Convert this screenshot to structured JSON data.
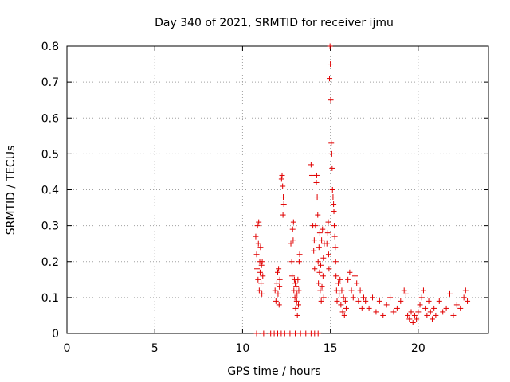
{
  "chart_data": {
    "type": "scatter",
    "title": "Day 340 of 2021, SRMTID for receiver ijmu",
    "xlabel": "GPS time / hours",
    "ylabel": "SRMTID / TECUs",
    "xlim": [
      0,
      24
    ],
    "ylim": [
      0,
      0.8
    ],
    "xticks": [
      0,
      5,
      10,
      15,
      20
    ],
    "yticks": [
      0,
      0.1,
      0.2,
      0.3,
      0.4,
      0.5,
      0.6,
      0.7,
      0.8
    ],
    "xtick_labels": [
      "0",
      "5",
      "10",
      "15",
      "20"
    ],
    "ytick_labels": [
      "0",
      "0.1",
      "0.2",
      "0.3",
      "0.4",
      "0.5",
      "0.6",
      "0.7",
      "0.8"
    ],
    "grid": true,
    "marker": "plus",
    "color": "#e00000",
    "series": [
      {
        "name": "SRMTID",
        "points": [
          [
            10.75,
            0.27
          ],
          [
            10.8,
            0.22
          ],
          [
            10.82,
            0.18
          ],
          [
            10.85,
            0.3
          ],
          [
            10.88,
            0.15
          ],
          [
            10.9,
            0.25
          ],
          [
            10.92,
            0.31
          ],
          [
            10.95,
            0.12
          ],
          [
            10.98,
            0.2
          ],
          [
            11.0,
            0.17
          ],
          [
            11.02,
            0.24
          ],
          [
            11.05,
            0.14
          ],
          [
            11.08,
            0.19
          ],
          [
            11.1,
            0.11
          ],
          [
            11.12,
            0.2
          ],
          [
            11.15,
            0.16
          ],
          [
            11.85,
            0.12
          ],
          [
            11.9,
            0.09
          ],
          [
            11.95,
            0.14
          ],
          [
            12.0,
            0.17
          ],
          [
            12.02,
            0.11
          ],
          [
            12.05,
            0.18
          ],
          [
            12.08,
            0.08
          ],
          [
            12.1,
            0.13
          ],
          [
            12.12,
            0.15
          ],
          [
            12.22,
            0.43
          ],
          [
            12.25,
            0.44
          ],
          [
            12.28,
            0.41
          ],
          [
            12.3,
            0.33
          ],
          [
            12.32,
            0.38
          ],
          [
            12.35,
            0.36
          ],
          [
            12.75,
            0.25
          ],
          [
            12.8,
            0.2
          ],
          [
            12.82,
            0.16
          ],
          [
            12.85,
            0.29
          ],
          [
            12.88,
            0.26
          ],
          [
            12.9,
            0.31
          ],
          [
            12.92,
            0.12
          ],
          [
            12.95,
            0.15
          ],
          [
            12.98,
            0.1
          ],
          [
            13.0,
            0.14
          ],
          [
            13.02,
            0.07
          ],
          [
            13.05,
            0.13
          ],
          [
            13.08,
            0.09
          ],
          [
            13.1,
            0.11
          ],
          [
            13.12,
            0.05
          ],
          [
            13.15,
            0.15
          ],
          [
            13.18,
            0.08
          ],
          [
            13.2,
            0.12
          ],
          [
            13.22,
            0.2
          ],
          [
            13.25,
            0.22
          ],
          [
            13.9,
            0.47
          ],
          [
            13.95,
            0.44
          ],
          [
            14.0,
            0.3
          ],
          [
            14.05,
            0.23
          ],
          [
            14.08,
            0.26
          ],
          [
            14.1,
            0.18
          ],
          [
            14.15,
            0.3
          ],
          [
            14.2,
            0.42
          ],
          [
            14.22,
            0.44
          ],
          [
            14.25,
            0.38
          ],
          [
            14.28,
            0.33
          ],
          [
            14.3,
            0.2
          ],
          [
            14.32,
            0.14
          ],
          [
            14.35,
            0.24
          ],
          [
            14.38,
            0.17
          ],
          [
            14.4,
            0.28
          ],
          [
            14.42,
            0.12
          ],
          [
            14.45,
            0.19
          ],
          [
            14.48,
            0.09
          ],
          [
            14.5,
            0.26
          ],
          [
            14.52,
            0.13
          ],
          [
            14.55,
            0.29
          ],
          [
            14.58,
            0.16
          ],
          [
            14.6,
            0.21
          ],
          [
            14.62,
            0.1
          ],
          [
            14.65,
            0.25
          ],
          [
            14.8,
            0.25
          ],
          [
            14.85,
            0.28
          ],
          [
            14.88,
            0.31
          ],
          [
            14.9,
            0.22
          ],
          [
            14.92,
            0.18
          ],
          [
            14.95,
            0.71
          ],
          [
            14.98,
            0.8
          ],
          [
            15.0,
            0.75
          ],
          [
            15.02,
            0.65
          ],
          [
            15.05,
            0.53
          ],
          [
            15.08,
            0.5
          ],
          [
            15.1,
            0.46
          ],
          [
            15.12,
            0.4
          ],
          [
            15.15,
            0.38
          ],
          [
            15.18,
            0.36
          ],
          [
            15.2,
            0.34
          ],
          [
            15.22,
            0.3
          ],
          [
            15.25,
            0.27
          ],
          [
            15.28,
            0.24
          ],
          [
            15.3,
            0.2
          ],
          [
            15.32,
            0.16
          ],
          [
            15.35,
            0.12
          ],
          [
            15.38,
            0.09
          ],
          [
            15.45,
            0.14
          ],
          [
            15.5,
            0.11
          ],
          [
            15.55,
            0.15
          ],
          [
            15.6,
            0.08
          ],
          [
            15.65,
            0.12
          ],
          [
            15.7,
            0.06
          ],
          [
            15.75,
            0.1
          ],
          [
            15.8,
            0.05
          ],
          [
            15.85,
            0.09
          ],
          [
            15.9,
            0.07
          ],
          [
            16.0,
            0.15
          ],
          [
            16.1,
            0.17
          ],
          [
            16.2,
            0.12
          ],
          [
            16.3,
            0.1
          ],
          [
            16.4,
            0.16
          ],
          [
            16.5,
            0.14
          ],
          [
            16.6,
            0.09
          ],
          [
            16.7,
            0.12
          ],
          [
            16.8,
            0.07
          ],
          [
            16.9,
            0.1
          ],
          [
            17.0,
            0.09
          ],
          [
            17.2,
            0.07
          ],
          [
            17.4,
            0.1
          ],
          [
            17.6,
            0.06
          ],
          [
            17.8,
            0.09
          ],
          [
            18.0,
            0.05
          ],
          [
            18.2,
            0.08
          ],
          [
            18.4,
            0.1
          ],
          [
            18.6,
            0.06
          ],
          [
            18.8,
            0.07
          ],
          [
            19.0,
            0.09
          ],
          [
            19.2,
            0.12
          ],
          [
            19.3,
            0.11
          ],
          [
            19.4,
            0.05
          ],
          [
            19.5,
            0.04
          ],
          [
            19.6,
            0.06
          ],
          [
            19.7,
            0.03
          ],
          [
            19.8,
            0.05
          ],
          [
            19.9,
            0.04
          ],
          [
            20.0,
            0.06
          ],
          [
            20.1,
            0.08
          ],
          [
            20.2,
            0.1
          ],
          [
            20.3,
            0.12
          ],
          [
            20.4,
            0.07
          ],
          [
            20.5,
            0.05
          ],
          [
            20.6,
            0.09
          ],
          [
            20.7,
            0.06
          ],
          [
            20.8,
            0.04
          ],
          [
            20.9,
            0.07
          ],
          [
            21.0,
            0.05
          ],
          [
            21.2,
            0.09
          ],
          [
            21.4,
            0.06
          ],
          [
            21.6,
            0.07
          ],
          [
            21.8,
            0.11
          ],
          [
            22.0,
            0.05
          ],
          [
            22.2,
            0.08
          ],
          [
            22.4,
            0.07
          ],
          [
            22.6,
            0.1
          ],
          [
            22.7,
            0.12
          ],
          [
            22.8,
            0.09
          ],
          [
            10.8,
            0.0
          ],
          [
            11.2,
            0.0
          ],
          [
            11.6,
            0.0
          ],
          [
            11.8,
            0.0
          ],
          [
            12.0,
            0.0
          ],
          [
            12.2,
            0.0
          ],
          [
            12.4,
            0.0
          ],
          [
            12.7,
            0.0
          ],
          [
            13.0,
            0.0
          ],
          [
            13.3,
            0.0
          ],
          [
            13.6,
            0.0
          ],
          [
            13.9,
            0.0
          ],
          [
            14.1,
            0.0
          ],
          [
            14.3,
            0.0
          ]
        ]
      }
    ]
  }
}
